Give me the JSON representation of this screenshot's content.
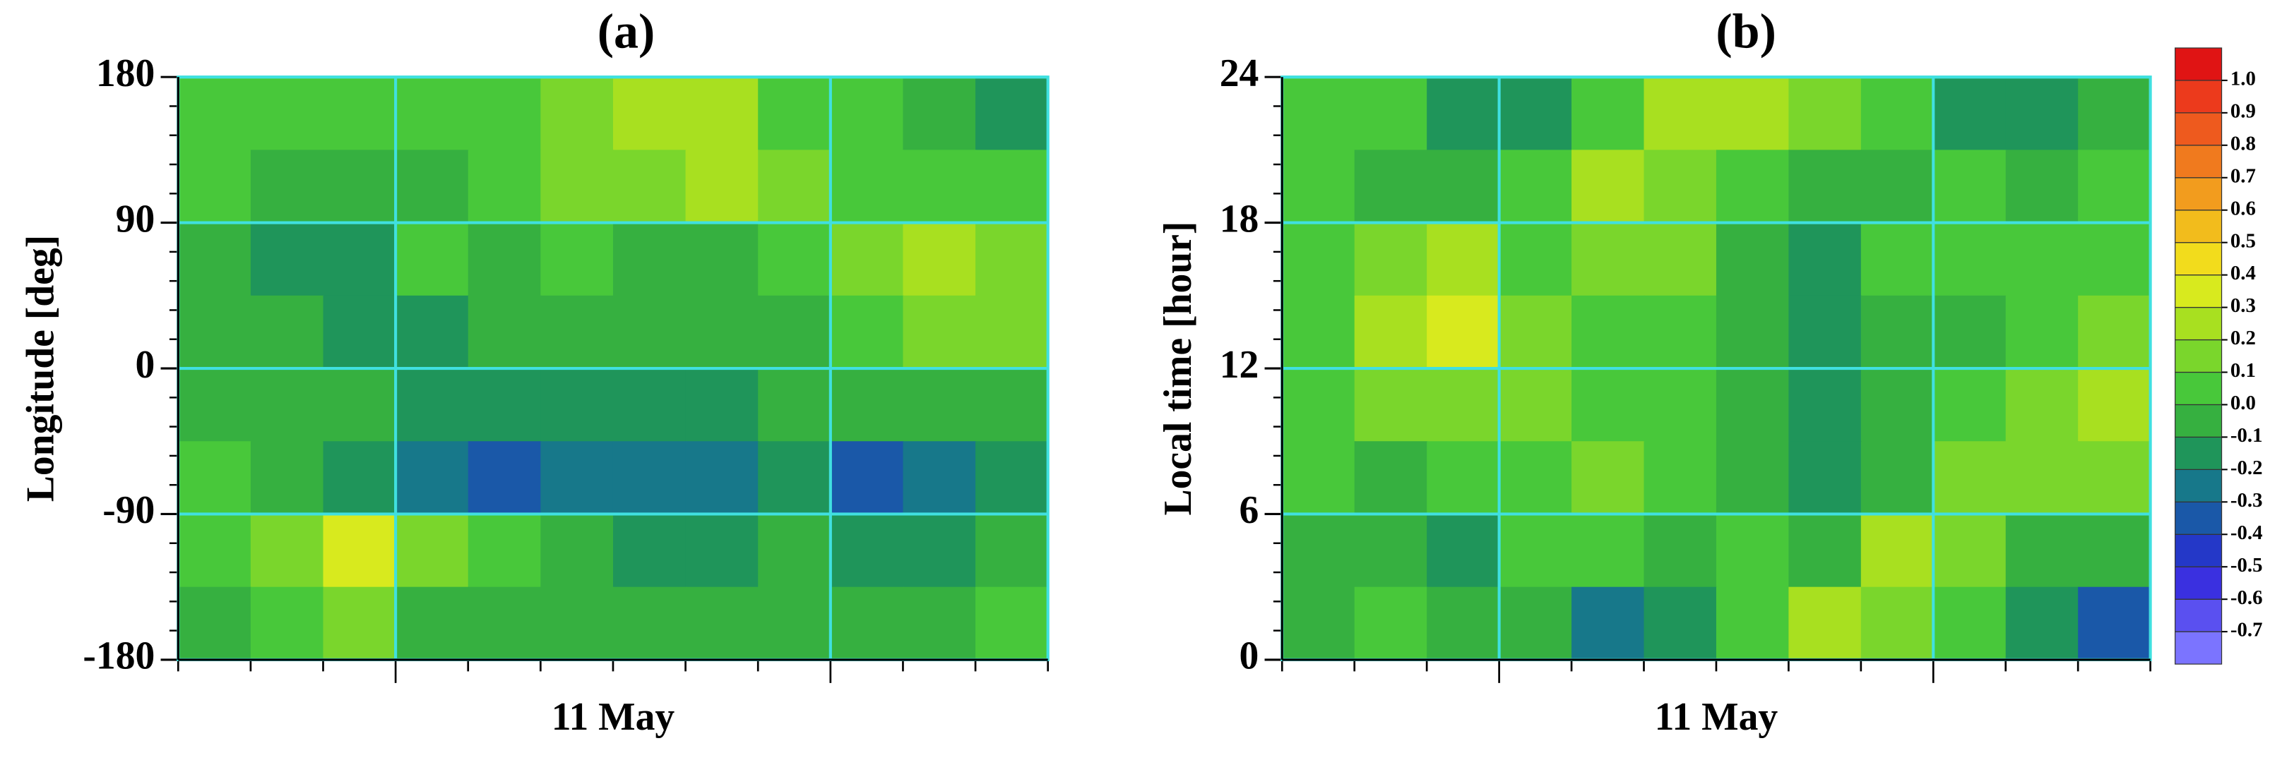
{
  "chart_data": [
    {
      "type": "heatmap",
      "title": "(a)",
      "ylabel": "Longitude [deg]",
      "xlabel": "11 May",
      "ylim": [
        -180,
        180
      ],
      "yticks": [
        -180,
        -90,
        0,
        90,
        180
      ],
      "grid": true,
      "values": [
        [
          0.0,
          0.0,
          0.05,
          0.05,
          0.0,
          0.15,
          0.25,
          0.2,
          0.05,
          0.0,
          -0.05,
          -0.15
        ],
        [
          0.05,
          -0.05,
          -0.1,
          -0.05,
          0.05,
          0.1,
          0.15,
          0.2,
          0.1,
          0.05,
          0.05,
          0.0
        ],
        [
          -0.05,
          -0.15,
          -0.2,
          0.0,
          -0.05,
          0.0,
          -0.05,
          -0.1,
          0.05,
          0.15,
          0.2,
          0.1
        ],
        [
          -0.05,
          -0.1,
          -0.2,
          -0.15,
          -0.1,
          -0.1,
          -0.1,
          -0.05,
          -0.05,
          0.05,
          0.1,
          0.1
        ],
        [
          -0.1,
          -0.1,
          -0.1,
          -0.15,
          -0.15,
          -0.15,
          -0.15,
          -0.15,
          -0.1,
          -0.1,
          -0.1,
          -0.05
        ],
        [
          0.0,
          -0.05,
          -0.15,
          -0.25,
          -0.35,
          -0.25,
          -0.25,
          -0.25,
          -0.2,
          -0.35,
          -0.3,
          -0.2
        ],
        [
          0.05,
          0.15,
          0.3,
          0.1,
          0.0,
          -0.1,
          -0.15,
          -0.15,
          -0.1,
          -0.15,
          -0.15,
          -0.1
        ],
        [
          -0.1,
          0.05,
          0.1,
          -0.05,
          -0.1,
          -0.05,
          -0.05,
          -0.1,
          -0.05,
          -0.1,
          -0.05,
          0.0
        ]
      ]
    },
    {
      "type": "heatmap",
      "title": "(b)",
      "ylabel": "Local time [hour]",
      "xlabel": "11 May",
      "ylim": [
        0,
        24
      ],
      "yticks": [
        0,
        6,
        12,
        18,
        24
      ],
      "grid": true,
      "values": [
        [
          0.05,
          0.0,
          -0.15,
          -0.2,
          0.05,
          0.2,
          0.25,
          0.1,
          0.0,
          -0.15,
          -0.2,
          -0.1
        ],
        [
          0.05,
          -0.1,
          -0.1,
          0.05,
          0.2,
          0.15,
          0.05,
          -0.05,
          -0.1,
          0.0,
          -0.1,
          0.0
        ],
        [
          0.0,
          0.1,
          0.2,
          0.05,
          0.15,
          0.1,
          -0.05,
          -0.15,
          0.0,
          0.0,
          0.0,
          0.05
        ],
        [
          0.05,
          0.2,
          0.35,
          0.1,
          0.0,
          0.05,
          -0.1,
          -0.15,
          -0.05,
          -0.05,
          0.05,
          0.1
        ],
        [
          0.05,
          0.1,
          0.1,
          0.1,
          0.0,
          0.0,
          -0.1,
          -0.2,
          -0.05,
          0.05,
          0.1,
          0.2
        ],
        [
          0.05,
          -0.1,
          0.0,
          0.05,
          0.1,
          0.0,
          -0.05,
          -0.15,
          -0.05,
          0.1,
          0.15,
          0.1
        ],
        [
          -0.1,
          -0.05,
          -0.15,
          0.0,
          0.05,
          -0.05,
          0.05,
          -0.05,
          0.25,
          0.1,
          -0.05,
          -0.1
        ],
        [
          -0.1,
          0.05,
          -0.1,
          -0.05,
          -0.3,
          -0.2,
          0.05,
          0.2,
          0.1,
          0.05,
          -0.2,
          -0.35
        ]
      ]
    }
  ],
  "colorbar": {
    "ticks": [
      -0.7,
      -0.6,
      -0.5,
      -0.4,
      -0.3,
      -0.2,
      -0.1,
      {
        "value": 0,
        "label": "0.0"
      },
      0.1,
      0.2,
      0.3,
      0.4,
      0.5,
      0.6,
      0.7,
      0.8,
      0.9,
      {
        "value": 1,
        "label": "1.0"
      }
    ],
    "colors": [
      "#7b74ff",
      "#5a50f0",
      "#3a30e0",
      "#2438c8",
      "#1a58a8",
      "#17788a",
      "#1f955a",
      "#36b040",
      "#48c83a",
      "#7ad62c",
      "#a8e020",
      "#d8ea1e",
      "#f2dc1c",
      "#f2bc1c",
      "#f29c1e",
      "#f07a1e",
      "#ee5a1e",
      "#ec3a1c",
      "#e01414"
    ]
  }
}
